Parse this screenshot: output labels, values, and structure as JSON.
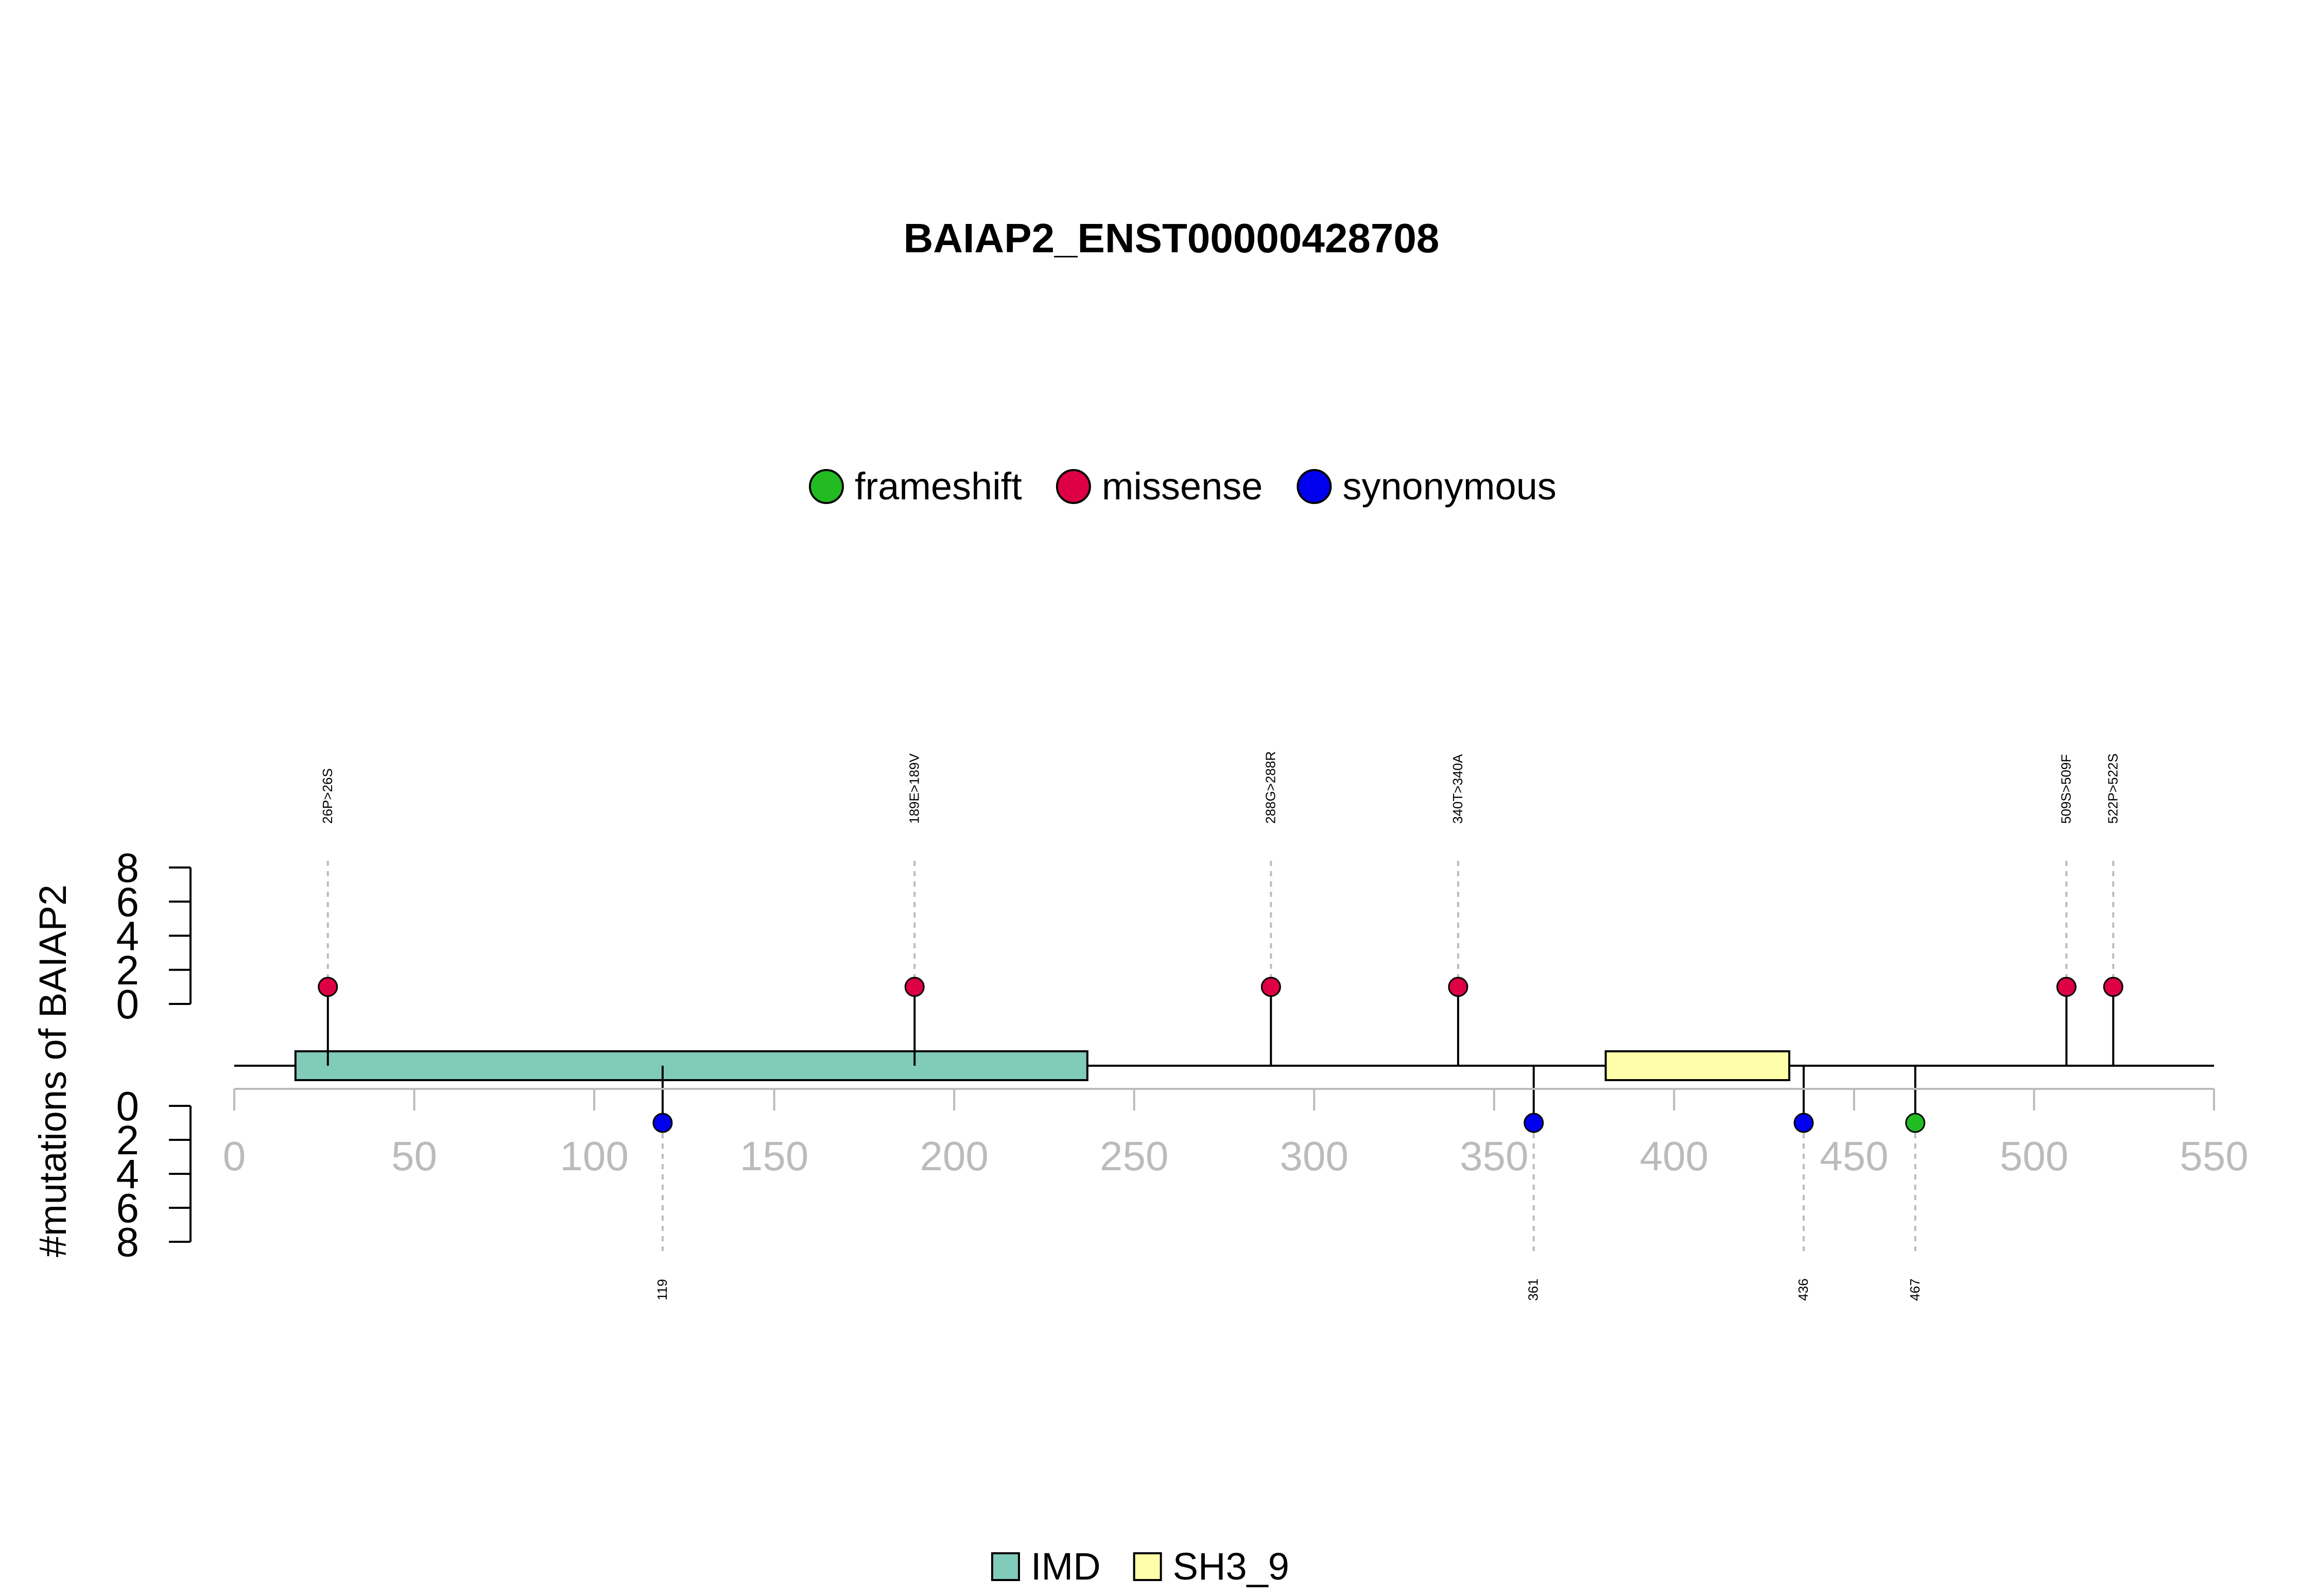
{
  "chart_data": {
    "type": "lollipop",
    "title": "BAIAP2_ENST00000428708",
    "ylabel": "#mutations of BAIAP2",
    "x_axis": {
      "range": [
        0,
        550
      ],
      "ticks": [
        0,
        50,
        100,
        150,
        200,
        250,
        300,
        350,
        400,
        450,
        500,
        550
      ]
    },
    "y_axis": {
      "range": [
        0,
        8
      ],
      "ticks": [
        0,
        2,
        4,
        6,
        8
      ]
    },
    "legend_mutation": [
      {
        "name": "frameshift",
        "color": "#22BB22"
      },
      {
        "name": "missense",
        "color": "#DD0044"
      },
      {
        "name": "synonymous",
        "color": "#0000EE"
      }
    ],
    "legend_domain": [
      {
        "name": "IMD",
        "color": "#80CBBA"
      },
      {
        "name": "SH3_9",
        "color": "#FFFFAA"
      }
    ],
    "domains": [
      {
        "name": "IMD",
        "start": 17,
        "end": 237
      },
      {
        "name": "SH3_9",
        "start": 381,
        "end": 432
      }
    ],
    "mutations_top": [
      {
        "position": 26,
        "count": 1,
        "type": "missense",
        "label": "26P>26S"
      },
      {
        "position": 189,
        "count": 1,
        "type": "missense",
        "label": "189E>189V"
      },
      {
        "position": 288,
        "count": 1,
        "type": "missense",
        "label": "288G>288R"
      },
      {
        "position": 340,
        "count": 1,
        "type": "missense",
        "label": "340T>340A"
      },
      {
        "position": 509,
        "count": 1,
        "type": "missense",
        "label": "509S>509F"
      },
      {
        "position": 522,
        "count": 1,
        "type": "missense",
        "label": "522P>522S"
      }
    ],
    "mutations_bottom": [
      {
        "position": 119,
        "count": 1,
        "type": "synonymous",
        "label": "119"
      },
      {
        "position": 361,
        "count": 1,
        "type": "synonymous",
        "label": "361"
      },
      {
        "position": 436,
        "count": 1,
        "type": "synonymous",
        "label": "436"
      },
      {
        "position": 467,
        "count": 1,
        "type": "frameshift",
        "label": "467"
      }
    ],
    "colors": {
      "axis_x": "#BBBBBB",
      "guide": "#BBBBBB",
      "frameshift": "#22BB22",
      "missense": "#DD0044",
      "synonymous": "#0000EE"
    }
  }
}
